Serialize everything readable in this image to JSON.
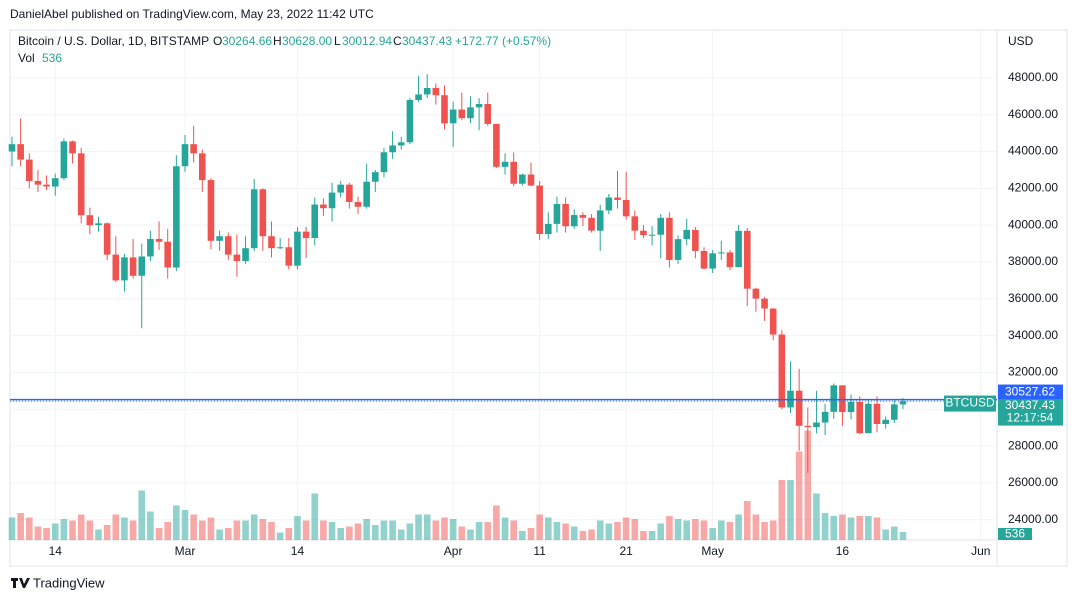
{
  "header": {
    "publisher": "DanielAbel published on TradingView.com, May 23, 2022 11:42 UTC"
  },
  "footer": {
    "brand": "TradingView"
  },
  "chart_data": {
    "type": "candlestick",
    "title": "Bitcoin / U.S. Dollar, 1D, BITSTAMP",
    "ohlc_letters": [
      "O",
      "H",
      "L",
      "C"
    ],
    "last_value_labels": [
      "30264.66",
      "30628.00",
      "30012.94",
      "30437.43"
    ],
    "change": "+172.77 (+0.57%)",
    "volume_label": "Vol",
    "currency": "USD",
    "symbol": "BTCUSD",
    "countdown": "12:17:54",
    "reference_line": 30527.62,
    "up_color": "#26a69a",
    "down_color": "#ef5350",
    "line_color": "#2962ff",
    "ylim": [
      22900,
      50600
    ],
    "yticks": [
      {
        "value": 24000,
        "label": "24000.00"
      },
      {
        "value": 26000,
        "label": "26000.00"
      },
      {
        "value": 28000,
        "label": "28000.00"
      },
      {
        "value": 30000,
        "label": "30000.00"
      },
      {
        "value": 32000,
        "label": "32000.00"
      },
      {
        "value": 34000,
        "label": "34000.00"
      },
      {
        "value": 36000,
        "label": "36000.00"
      },
      {
        "value": 38000,
        "label": "38000.00"
      },
      {
        "value": 40000,
        "label": "40000.00"
      },
      {
        "value": 42000,
        "label": "42000.00"
      },
      {
        "value": 44000,
        "label": "44000.00"
      },
      {
        "value": 46000,
        "label": "46000.00"
      },
      {
        "value": 48000,
        "label": "48000.00"
      }
    ],
    "xticks": [
      {
        "value": "Feb 14",
        "label": "14"
      },
      {
        "value": "Mar 1",
        "label": "Mar"
      },
      {
        "value": "Mar 14",
        "label": "14"
      },
      {
        "value": "Apr 1",
        "label": "Apr"
      },
      {
        "value": "Apr 11",
        "label": "11"
      },
      {
        "value": "Apr 21",
        "label": "21"
      },
      {
        "value": "May 1",
        "label": "May"
      },
      {
        "value": "May 16",
        "label": "16"
      },
      {
        "value": "Jun 1",
        "label": "Jun"
      }
    ],
    "volume_lim": [
      0,
      9000
    ],
    "grid": true,
    "x": [
      "Feb 9",
      "Feb 10",
      "Feb 11",
      "Feb 12",
      "Feb 13",
      "Feb 14",
      "Feb 15",
      "Feb 16",
      "Feb 17",
      "Feb 18",
      "Feb 19",
      "Feb 20",
      "Feb 21",
      "Feb 22",
      "Feb 23",
      "Feb 24",
      "Feb 25",
      "Feb 26",
      "Feb 27",
      "Feb 28",
      "Mar 1",
      "Mar 2",
      "Mar 3",
      "Mar 4",
      "Mar 5",
      "Mar 6",
      "Mar 7",
      "Mar 8",
      "Mar 9",
      "Mar 10",
      "Mar 11",
      "Mar 12",
      "Mar 13",
      "Mar 14",
      "Mar 15",
      "Mar 16",
      "Mar 17",
      "Mar 18",
      "Mar 19",
      "Mar 20",
      "Mar 21",
      "Mar 22",
      "Mar 23",
      "Mar 24",
      "Mar 25",
      "Mar 26",
      "Mar 27",
      "Mar 28",
      "Mar 29",
      "Mar 30",
      "Mar 31",
      "Apr 1",
      "Apr 2",
      "Apr 3",
      "Apr 4",
      "Apr 5",
      "Apr 6",
      "Apr 7",
      "Apr 8",
      "Apr 9",
      "Apr 10",
      "Apr 11",
      "Apr 12",
      "Apr 13",
      "Apr 14",
      "Apr 15",
      "Apr 16",
      "Apr 17",
      "Apr 18",
      "Apr 19",
      "Apr 20",
      "Apr 21",
      "Apr 22",
      "Apr 23",
      "Apr 24",
      "Apr 25",
      "Apr 26",
      "Apr 27",
      "Apr 28",
      "Apr 29",
      "Apr 30",
      "May 1",
      "May 2",
      "May 3",
      "May 4",
      "May 5",
      "May 6",
      "May 7",
      "May 8",
      "May 9",
      "May 10",
      "May 11",
      "May 12",
      "May 13",
      "May 14",
      "May 15",
      "May 16",
      "May 17",
      "May 18",
      "May 19",
      "May 20",
      "May 21",
      "May 22",
      "May 23"
    ],
    "ohlc": [
      [
        44000,
        44800,
        43200,
        44400
      ],
      [
        44400,
        45800,
        43200,
        43560
      ],
      [
        43560,
        43900,
        42000,
        42400
      ],
      [
        42400,
        43000,
        41800,
        42200
      ],
      [
        42200,
        42700,
        41900,
        42100
      ],
      [
        42100,
        42800,
        41600,
        42550
      ],
      [
        42550,
        44700,
        42450,
        44550
      ],
      [
        44550,
        44600,
        43350,
        43900
      ],
      [
        43900,
        44200,
        40100,
        40540
      ],
      [
        40540,
        40950,
        39500,
        40000
      ],
      [
        40000,
        40450,
        39650,
        40100
      ],
      [
        40100,
        40150,
        38100,
        38400
      ],
      [
        38400,
        39400,
        36900,
        37000
      ],
      [
        37000,
        38450,
        36400,
        38250
      ],
      [
        38250,
        39250,
        37100,
        37250
      ],
      [
        37250,
        39000,
        34400,
        38300
      ],
      [
        38300,
        39700,
        38050,
        39250
      ],
      [
        39250,
        40200,
        38650,
        39100
      ],
      [
        39100,
        39800,
        37100,
        37700
      ],
      [
        37700,
        43800,
        37500,
        43200
      ],
      [
        43200,
        44900,
        42900,
        44400
      ],
      [
        44400,
        45400,
        43400,
        43900
      ],
      [
        43900,
        44100,
        41800,
        42450
      ],
      [
        42450,
        42550,
        38700,
        39150
      ],
      [
        39150,
        39700,
        38600,
        39400
      ],
      [
        39400,
        39600,
        38100,
        38400
      ],
      [
        38400,
        39500,
        37200,
        38050
      ],
      [
        38050,
        39400,
        37900,
        38750
      ],
      [
        38750,
        42500,
        38600,
        41950
      ],
      [
        41950,
        42000,
        38600,
        39400
      ],
      [
        39400,
        40200,
        38250,
        38750
      ],
      [
        38750,
        39300,
        38700,
        38800
      ],
      [
        38800,
        39300,
        37600,
        37800
      ],
      [
        37800,
        39900,
        37600,
        39650
      ],
      [
        39650,
        39900,
        38200,
        39300
      ],
      [
        39300,
        41500,
        38900,
        41120
      ],
      [
        41120,
        41450,
        40500,
        40920
      ],
      [
        40920,
        42300,
        40200,
        41770
      ],
      [
        41770,
        42400,
        41500,
        42200
      ],
      [
        42200,
        42300,
        40900,
        41260
      ],
      [
        41260,
        41550,
        40600,
        41000
      ],
      [
        41000,
        43350,
        40900,
        42360
      ],
      [
        42360,
        43000,
        41800,
        42880
      ],
      [
        42880,
        44200,
        42600,
        43960
      ],
      [
        43960,
        45100,
        43600,
        44330
      ],
      [
        44330,
        44800,
        44100,
        44500
      ],
      [
        44500,
        46900,
        44400,
        46800
      ],
      [
        46800,
        48100,
        46700,
        47100
      ],
      [
        47100,
        48200,
        46900,
        47450
      ],
      [
        47450,
        47700,
        46550,
        47060
      ],
      [
        47060,
        47600,
        45200,
        45530
      ],
      [
        45530,
        46700,
        44250,
        46280
      ],
      [
        46280,
        47200,
        45700,
        45810
      ],
      [
        45810,
        47000,
        45550,
        46400
      ],
      [
        46400,
        46900,
        45150,
        46580
      ],
      [
        46580,
        47200,
        45400,
        45500
      ],
      [
        45500,
        45500,
        43100,
        43170
      ],
      [
        43170,
        43900,
        42750,
        43440
      ],
      [
        43440,
        43950,
        42100,
        42250
      ],
      [
        42250,
        42800,
        42150,
        42750
      ],
      [
        42750,
        43400,
        42100,
        42150
      ],
      [
        42150,
        42400,
        39200,
        39520
      ],
      [
        39520,
        40700,
        39250,
        40070
      ],
      [
        40070,
        41550,
        39600,
        41150
      ],
      [
        41150,
        41500,
        39600,
        39940
      ],
      [
        39940,
        40850,
        39800,
        40550
      ],
      [
        40550,
        40700,
        39950,
        40400
      ],
      [
        40400,
        40600,
        39600,
        39700
      ],
      [
        39700,
        41100,
        38600,
        40800
      ],
      [
        40800,
        41700,
        40600,
        41500
      ],
      [
        41500,
        42950,
        40900,
        41370
      ],
      [
        41370,
        42900,
        40300,
        40480
      ],
      [
        40480,
        40800,
        39200,
        39700
      ],
      [
        39700,
        40000,
        39300,
        39460
      ],
      [
        39460,
        39950,
        38900,
        39480
      ],
      [
        39480,
        40600,
        38200,
        40400
      ],
      [
        40400,
        40700,
        37700,
        38110
      ],
      [
        38110,
        39450,
        37900,
        39240
      ],
      [
        39240,
        40350,
        38900,
        39740
      ],
      [
        39740,
        39900,
        38200,
        38600
      ],
      [
        38600,
        38800,
        37600,
        37640
      ],
      [
        37640,
        38650,
        37400,
        38470
      ],
      [
        38470,
        39150,
        38100,
        38520
      ],
      [
        38520,
        38650,
        37550,
        37720
      ],
      [
        37720,
        40000,
        37700,
        39690
      ],
      [
        39690,
        39850,
        35600,
        36550
      ],
      [
        36550,
        36600,
        35300,
        36010
      ],
      [
        36010,
        36100,
        34800,
        35470
      ],
      [
        35470,
        35500,
        33750,
        34060
      ],
      [
        34060,
        34300,
        30000,
        30100
      ],
      [
        30100,
        32600,
        29800,
        31010
      ],
      [
        31010,
        32200,
        27750,
        29100
      ],
      [
        29100,
        30100,
        26550,
        29030
      ],
      [
        29030,
        31000,
        28700,
        29280
      ],
      [
        29280,
        30300,
        28600,
        29860
      ],
      [
        29860,
        31400,
        29480,
        31300
      ],
      [
        31300,
        31300,
        29100,
        29850
      ],
      [
        29850,
        30800,
        29450,
        30400
      ],
      [
        30400,
        30700,
        28650,
        28700
      ],
      [
        28700,
        30550,
        28700,
        30300
      ],
      [
        30300,
        30700,
        28750,
        29200
      ],
      [
        29200,
        29600,
        28950,
        29430
      ],
      [
        29430,
        30480,
        29250,
        30265
      ],
      [
        30264.66,
        30628,
        30012.94,
        30437.43
      ]
    ],
    "volume": [
      1500,
      1800,
      1500,
      900,
      800,
      1100,
      1400,
      1300,
      1700,
      1300,
      700,
      1000,
      1700,
      1500,
      1300,
      3300,
      1900,
      800,
      1200,
      2300,
      2000,
      1700,
      1300,
      1500,
      700,
      800,
      1300,
      1300,
      1700,
      1400,
      1200,
      500,
      800,
      1600,
      1300,
      3100,
      1300,
      1200,
      800,
      900,
      1100,
      1400,
      1000,
      1300,
      1300,
      700,
      1100,
      1700,
      1700,
      1300,
      1500,
      1400,
      900,
      700,
      1200,
      1200,
      2300,
      1500,
      1300,
      600,
      800,
      1700,
      1500,
      1200,
      1100,
      900,
      600,
      700,
      1300,
      1100,
      1200,
      1500,
      1400,
      600,
      600,
      1100,
      1600,
      1400,
      1300,
      1400,
      1300,
      800,
      1300,
      1200,
      1700,
      2600,
      1700,
      1200,
      1300,
      4000,
      4000,
      5900,
      7300,
      3100,
      1800,
      1600,
      1700,
      1500,
      1600,
      1600,
      1500,
      700,
      900,
      536
    ]
  }
}
